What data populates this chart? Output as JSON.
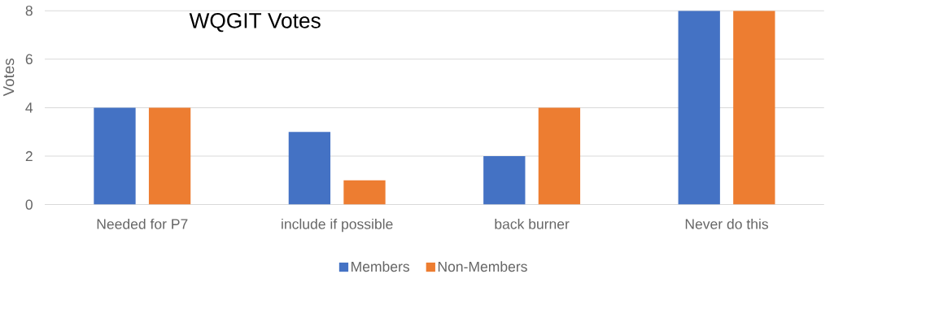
{
  "chart_data": {
    "type": "bar",
    "title": "WQGIT Votes",
    "ylabel": "Votes",
    "categories": [
      "Needed for P7",
      "include if possible",
      "back burner",
      "Never do this"
    ],
    "series": [
      {
        "name": "Members",
        "color": "#4472c4",
        "values": [
          4,
          3,
          2,
          8
        ]
      },
      {
        "name": "Non-Members",
        "color": "#ed7d31",
        "values": [
          4,
          1,
          4,
          8
        ]
      }
    ],
    "ylim": [
      0,
      8
    ],
    "yticks": [
      0,
      2,
      4,
      6,
      8
    ],
    "grid": "y",
    "legend": "bottom"
  }
}
